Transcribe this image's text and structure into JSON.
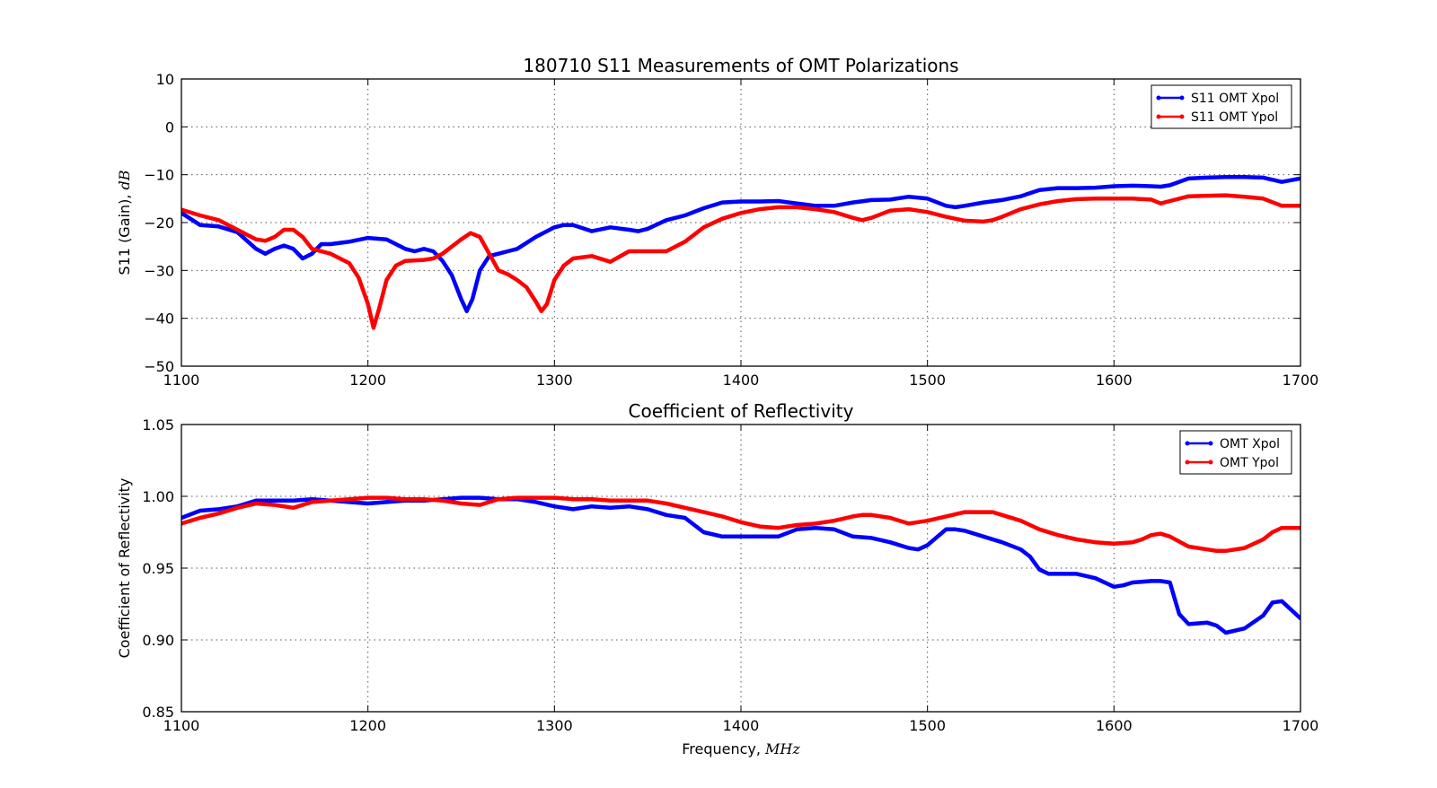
{
  "colors": {
    "xpol": "#0000ff",
    "ypol": "#ff0000"
  },
  "chart_data": [
    {
      "type": "line",
      "title": "180710 S11 Measurements of OMT Polarizations",
      "xlabel": "",
      "ylabel_main": "S11 (Gain), ",
      "ylabel_unit": "dB",
      "xlim": [
        1100,
        1700
      ],
      "ylim": [
        -50,
        10
      ],
      "xticks": [
        "1100",
        "1200",
        "1300",
        "1400",
        "1500",
        "1600",
        "1700"
      ],
      "yticks": [
        "10",
        "0",
        "−10",
        "−20",
        "−30",
        "−40",
        "−50"
      ],
      "grid": true,
      "legend_position": "top-right",
      "series": [
        {
          "name": "S11 OMT Xpol",
          "color": "#0000ff",
          "x": [
            1100,
            1110,
            1120,
            1130,
            1140,
            1145,
            1150,
            1155,
            1160,
            1165,
            1170,
            1175,
            1180,
            1190,
            1200,
            1210,
            1220,
            1225,
            1230,
            1235,
            1240,
            1245,
            1250,
            1253,
            1256,
            1260,
            1265,
            1270,
            1275,
            1280,
            1290,
            1300,
            1305,
            1310,
            1320,
            1330,
            1340,
            1345,
            1350,
            1360,
            1370,
            1380,
            1390,
            1400,
            1410,
            1420,
            1430,
            1440,
            1450,
            1460,
            1470,
            1480,
            1490,
            1500,
            1510,
            1515,
            1520,
            1530,
            1540,
            1550,
            1560,
            1570,
            1580,
            1590,
            1600,
            1610,
            1620,
            1625,
            1630,
            1640,
            1650,
            1660,
            1670,
            1680,
            1690,
            1700
          ],
          "y": [
            -18,
            -20.5,
            -20.8,
            -22,
            -25.5,
            -26.5,
            -25.5,
            -24.8,
            -25.5,
            -27.5,
            -26.5,
            -24.5,
            -24.5,
            -24,
            -23.2,
            -23.5,
            -25.5,
            -26,
            -25.5,
            -26,
            -28,
            -31,
            -36,
            -38.5,
            -36,
            -30,
            -27,
            -26.5,
            -26,
            -25.5,
            -23,
            -21,
            -20.5,
            -20.5,
            -21.8,
            -21,
            -21.5,
            -21.8,
            -21.3,
            -19.5,
            -18.5,
            -17,
            -15.8,
            -15.6,
            -15.6,
            -15.5,
            -16,
            -16.5,
            -16.5,
            -15.8,
            -15.3,
            -15.2,
            -14.6,
            -15,
            -16.5,
            -16.8,
            -16.5,
            -15.8,
            -15.3,
            -14.5,
            -13.2,
            -12.8,
            -12.8,
            -12.7,
            -12.4,
            -12.3,
            -12.4,
            -12.5,
            -12.2,
            -10.8,
            -10.6,
            -10.5,
            -10.5,
            -10.6,
            -11.5,
            -10.8
          ]
        },
        {
          "name": "S11 OMT Ypol",
          "color": "#ff0000",
          "x": [
            1100,
            1110,
            1120,
            1130,
            1140,
            1145,
            1150,
            1155,
            1160,
            1165,
            1170,
            1180,
            1190,
            1195,
            1200,
            1203,
            1206,
            1210,
            1215,
            1220,
            1230,
            1235,
            1240,
            1245,
            1250,
            1255,
            1260,
            1265,
            1270,
            1275,
            1280,
            1285,
            1290,
            1293,
            1296,
            1300,
            1305,
            1310,
            1320,
            1330,
            1340,
            1350,
            1360,
            1370,
            1380,
            1390,
            1400,
            1410,
            1420,
            1430,
            1440,
            1450,
            1460,
            1465,
            1470,
            1480,
            1490,
            1500,
            1510,
            1520,
            1530,
            1535,
            1540,
            1550,
            1560,
            1570,
            1580,
            1590,
            1600,
            1610,
            1620,
            1625,
            1630,
            1640,
            1650,
            1660,
            1670,
            1680,
            1690,
            1700
          ],
          "y": [
            -17.3,
            -18.5,
            -19.5,
            -21.5,
            -23.5,
            -23.8,
            -23,
            -21.5,
            -21.5,
            -23,
            -25.5,
            -26.5,
            -28.5,
            -31.5,
            -37,
            -42,
            -38,
            -32,
            -29,
            -28,
            -27.8,
            -27.5,
            -26.5,
            -25,
            -23.5,
            -22.2,
            -23,
            -26.5,
            -30,
            -30.8,
            -32,
            -33.5,
            -36.5,
            -38.5,
            -37,
            -32,
            -29,
            -27.5,
            -27,
            -28.2,
            -26,
            -26,
            -26,
            -24,
            -21,
            -19.2,
            -18,
            -17.2,
            -16.8,
            -16.8,
            -17.2,
            -17.8,
            -19,
            -19.5,
            -19,
            -17.5,
            -17.2,
            -17.8,
            -18.8,
            -19.6,
            -19.8,
            -19.5,
            -18.8,
            -17.2,
            -16.2,
            -15.5,
            -15.1,
            -15,
            -15,
            -15,
            -15.2,
            -16,
            -15.5,
            -14.5,
            -14.4,
            -14.3,
            -14.6,
            -15,
            -16.5,
            -16.5
          ]
        }
      ]
    },
    {
      "type": "line",
      "title": "Coefficient of Reflectivity",
      "xlabel_main": "Frequency, ",
      "xlabel_unit": "MHz",
      "ylabel": "Coefficient of Reflectivity",
      "xlim": [
        1100,
        1700
      ],
      "ylim": [
        0.85,
        1.05
      ],
      "xticks": [
        "1100",
        "1200",
        "1300",
        "1400",
        "1500",
        "1600",
        "1700"
      ],
      "yticks": [
        "1.05",
        "1.00",
        "0.95",
        "0.90",
        "0.85"
      ],
      "grid": true,
      "legend_position": "top-right",
      "series": [
        {
          "name": "OMT Xpol",
          "color": "#0000ff",
          "x": [
            1100,
            1110,
            1120,
            1130,
            1140,
            1150,
            1160,
            1170,
            1180,
            1190,
            1200,
            1210,
            1220,
            1230,
            1240,
            1250,
            1260,
            1270,
            1280,
            1290,
            1300,
            1310,
            1320,
            1330,
            1340,
            1350,
            1360,
            1370,
            1380,
            1390,
            1400,
            1410,
            1420,
            1430,
            1440,
            1450,
            1460,
            1470,
            1480,
            1490,
            1495,
            1500,
            1510,
            1515,
            1520,
            1530,
            1540,
            1550,
            1555,
            1560,
            1565,
            1570,
            1580,
            1590,
            1600,
            1605,
            1610,
            1620,
            1625,
            1630,
            1635,
            1640,
            1650,
            1655,
            1660,
            1670,
            1680,
            1685,
            1690,
            1700
          ],
          "y": [
            0.985,
            0.99,
            0.991,
            0.993,
            0.997,
            0.997,
            0.997,
            0.998,
            0.997,
            0.996,
            0.995,
            0.996,
            0.997,
            0.997,
            0.998,
            0.999,
            0.999,
            0.998,
            0.998,
            0.996,
            0.993,
            0.991,
            0.993,
            0.992,
            0.993,
            0.991,
            0.987,
            0.985,
            0.975,
            0.972,
            0.972,
            0.972,
            0.972,
            0.977,
            0.978,
            0.977,
            0.972,
            0.971,
            0.968,
            0.964,
            0.963,
            0.966,
            0.977,
            0.977,
            0.976,
            0.972,
            0.968,
            0.963,
            0.958,
            0.949,
            0.946,
            0.946,
            0.946,
            0.943,
            0.937,
            0.938,
            0.94,
            0.941,
            0.941,
            0.94,
            0.918,
            0.911,
            0.912,
            0.91,
            0.905,
            0.908,
            0.917,
            0.926,
            0.927,
            0.915
          ]
        },
        {
          "name": "OMT Ypol",
          "color": "#ff0000",
          "x": [
            1100,
            1110,
            1120,
            1130,
            1140,
            1150,
            1160,
            1170,
            1180,
            1190,
            1200,
            1210,
            1220,
            1230,
            1240,
            1250,
            1260,
            1270,
            1280,
            1290,
            1300,
            1310,
            1320,
            1330,
            1340,
            1350,
            1360,
            1370,
            1380,
            1390,
            1400,
            1410,
            1420,
            1430,
            1440,
            1450,
            1460,
            1465,
            1470,
            1480,
            1490,
            1500,
            1510,
            1520,
            1530,
            1535,
            1540,
            1550,
            1560,
            1570,
            1580,
            1590,
            1600,
            1610,
            1615,
            1620,
            1625,
            1630,
            1640,
            1650,
            1655,
            1660,
            1670,
            1680,
            1685,
            1690,
            1700
          ],
          "y": [
            0.981,
            0.985,
            0.988,
            0.992,
            0.995,
            0.994,
            0.992,
            0.996,
            0.997,
            0.998,
            0.999,
            0.999,
            0.998,
            0.998,
            0.997,
            0.995,
            0.994,
            0.998,
            0.999,
            0.999,
            0.999,
            0.998,
            0.998,
            0.997,
            0.997,
            0.997,
            0.995,
            0.992,
            0.989,
            0.986,
            0.982,
            0.979,
            0.978,
            0.98,
            0.981,
            0.983,
            0.986,
            0.987,
            0.987,
            0.985,
            0.981,
            0.983,
            0.986,
            0.989,
            0.989,
            0.989,
            0.987,
            0.983,
            0.977,
            0.973,
            0.97,
            0.968,
            0.967,
            0.968,
            0.97,
            0.973,
            0.974,
            0.972,
            0.965,
            0.963,
            0.962,
            0.962,
            0.964,
            0.97,
            0.975,
            0.978,
            0.978
          ]
        }
      ]
    }
  ]
}
